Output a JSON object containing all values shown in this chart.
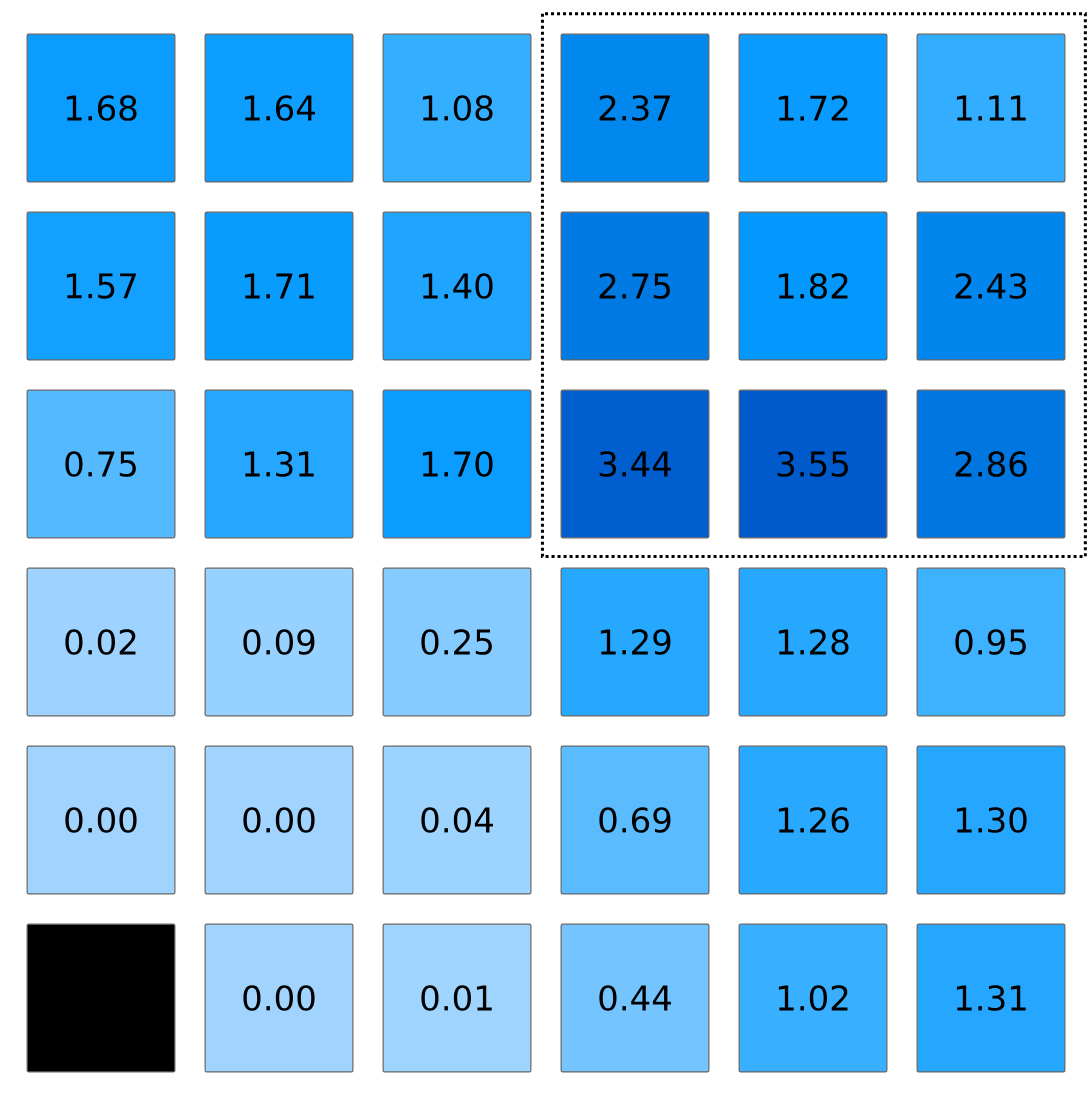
{
  "chart_data": {
    "type": "heatmap",
    "categories": [
      null,
      null,
      null,
      null,
      null,
      null
    ],
    "y_categories": [
      null,
      null,
      null,
      null,
      null,
      null
    ],
    "cells": [
      [
        1.68,
        1.64,
        1.08,
        2.37,
        1.72,
        1.11
      ],
      [
        1.57,
        1.71,
        1.4,
        2.75,
        1.82,
        2.43
      ],
      [
        0.75,
        1.31,
        1.7,
        3.44,
        3.55,
        2.86
      ],
      [
        0.02,
        0.09,
        0.25,
        1.29,
        1.28,
        0.95
      ],
      [
        0.0,
        0.0,
        0.04,
        0.69,
        1.26,
        1.3
      ],
      [
        null,
        0.0,
        0.01,
        0.44,
        1.02,
        1.31
      ]
    ],
    "cell_labels": [
      [
        "1.68",
        "1.64",
        "1.08",
        "2.37",
        "1.72",
        "1.11"
      ],
      [
        "1.57",
        "1.71",
        "1.40",
        "2.75",
        "1.82",
        "2.43"
      ],
      [
        "0.75",
        "1.31",
        "1.70",
        "3.44",
        "3.55",
        "2.86"
      ],
      [
        "0.02",
        "0.09",
        "0.25",
        "1.29",
        "1.28",
        "0.95"
      ],
      [
        "0.00",
        "0.00",
        "0.04",
        "0.69",
        "1.26",
        "1.30"
      ],
      [
        null,
        "0.00",
        "0.01",
        "0.44",
        "1.02",
        "1.31"
      ]
    ],
    "data_labels": true
  }
}
